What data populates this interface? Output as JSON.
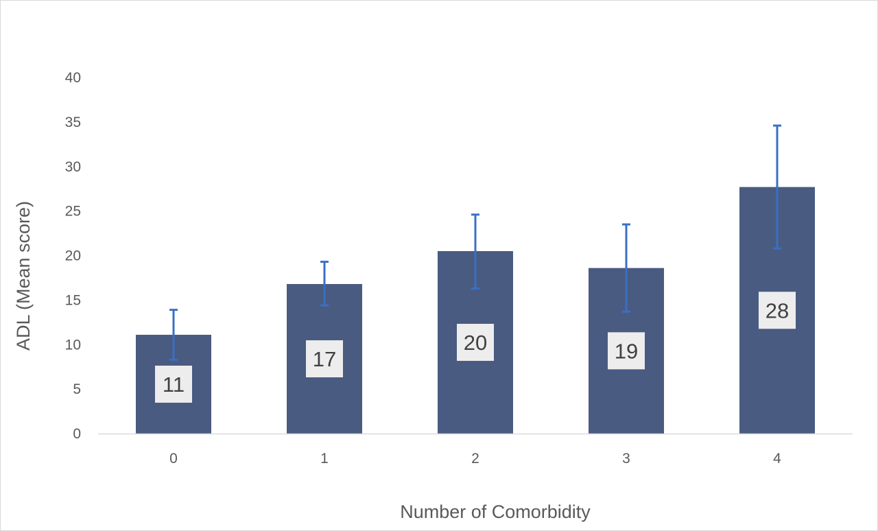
{
  "chart_data": {
    "type": "bar",
    "title": "",
    "xlabel": "Number of Comorbidity",
    "ylabel": "ADL (Mean score)",
    "categories": [
      "0",
      "1",
      "2",
      "3",
      "4"
    ],
    "values": [
      11.1,
      16.8,
      20.5,
      18.6,
      27.7
    ],
    "data_labels": [
      "11",
      "17",
      "20",
      "19",
      "28"
    ],
    "error_bars": {
      "upper": [
        13.9,
        19.3,
        24.6,
        23.5,
        34.6
      ],
      "lower": [
        8.3,
        14.4,
        16.3,
        13.7,
        20.8
      ]
    },
    "ylim": [
      0,
      40
    ],
    "yticks": [
      0,
      5,
      10,
      15,
      20,
      25,
      30,
      35,
      40
    ],
    "grid": false,
    "legend": "none",
    "colors": {
      "bar": "#4a5b81",
      "error_bar": "#3a6fc4",
      "label_box": "#ededed",
      "axis": "#d9d9d9"
    }
  }
}
